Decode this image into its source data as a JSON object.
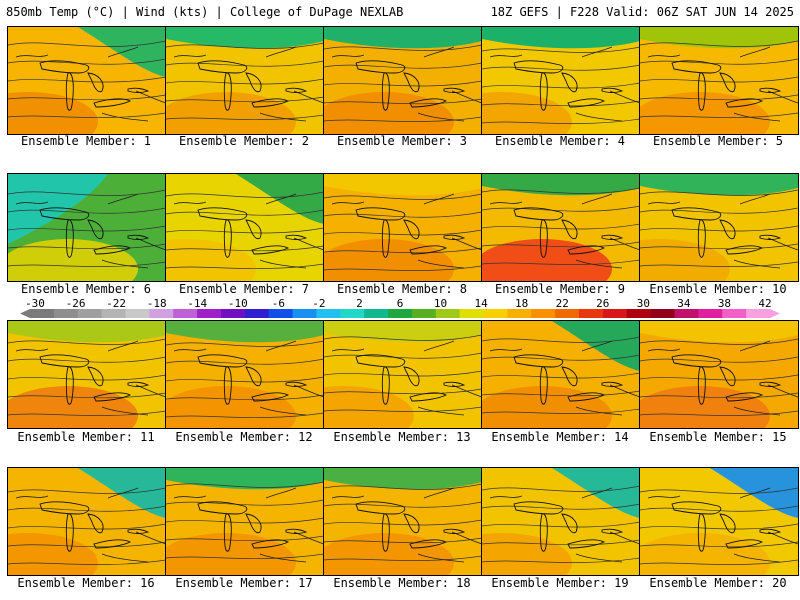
{
  "header": {
    "left": "850mb Temp (°C) | Wind (kts) | College of DuPage NEXLAB",
    "right": "18Z GEFS | F228 Valid: 06Z SAT JUN 14 2025"
  },
  "members": [
    {
      "label": "Ensemble Member: 1",
      "fill": "#f7b400",
      "warm": "#f08a00",
      "cool": "#23b463",
      "cool_corner": "ne"
    },
    {
      "label": "Ensemble Member: 2",
      "fill": "#f2c400",
      "warm": "#f29a00",
      "cool": "#1ab86c",
      "cool_corner": "n"
    },
    {
      "label": "Ensemble Member: 3",
      "fill": "#f3b000",
      "warm": "#f08a00",
      "cool": "#14b070",
      "cool_corner": "n"
    },
    {
      "label": "Ensemble Member: 4",
      "fill": "#f2c800",
      "warm": "#f5a000",
      "cool": "#0fb06f",
      "cool_corner": "n"
    },
    {
      "label": "Ensemble Member: 5",
      "fill": "#f7b800",
      "warm": "#f39000",
      "cool": "#9ac40a",
      "cool_corner": "n"
    },
    {
      "label": "Ensemble Member: 6",
      "fill": "#4cb038",
      "warm": "#e8d400",
      "cool": "#1fc7b0",
      "cool_corner": "nw"
    },
    {
      "label": "Ensemble Member: 7",
      "fill": "#e8d400",
      "warm": "#f2c000",
      "cool": "#2aa84a",
      "cool_corner": "ne"
    },
    {
      "label": "Ensemble Member: 8",
      "fill": "#f5b000",
      "warm": "#f08a00",
      "cool": "#f2c800",
      "cool_corner": "n"
    },
    {
      "label": "Ensemble Member: 9",
      "fill": "#f3ba00",
      "warm": "#ee3b1a",
      "cool": "#2aa84a",
      "cool_corner": "n"
    },
    {
      "label": "Ensemble Member: 10",
      "fill": "#f2c400",
      "warm": "#f2a800",
      "cool": "#25b25e",
      "cool_corner": "n"
    },
    {
      "label": "Ensemble Member: 11",
      "fill": "#f2c400",
      "warm": "#f07a10",
      "cool": "#a8c818",
      "cool_corner": "n"
    },
    {
      "label": "Ensemble Member: 12",
      "fill": "#f5b000",
      "warm": "#f39000",
      "cool": "#4cb040",
      "cool_corner": "n"
    },
    {
      "label": "Ensemble Member: 13",
      "fill": "#f2c400",
      "warm": "#f5a000",
      "cool": "#c8d010",
      "cool_corner": "n"
    },
    {
      "label": "Ensemble Member: 14",
      "fill": "#f5b000",
      "warm": "#f08a00",
      "cool": "#1aa860",
      "cool_corner": "ne"
    },
    {
      "label": "Ensemble Member: 15",
      "fill": "#f5a800",
      "warm": "#f07a10",
      "cool": "#f2c400",
      "cool_corner": "n"
    },
    {
      "label": "Ensemble Member: 16",
      "fill": "#f5b400",
      "warm": "#f29000",
      "cool": "#1ab8a0",
      "cool_corner": "ne"
    },
    {
      "label": "Ensemble Member: 17",
      "fill": "#f5b400",
      "warm": "#f29000",
      "cool": "#25b460",
      "cool_corner": "n"
    },
    {
      "label": "Ensemble Member: 18",
      "fill": "#f5b400",
      "warm": "#f29000",
      "cool": "#40b048",
      "cool_corner": "n"
    },
    {
      "label": "Ensemble Member: 19",
      "fill": "#f2c400",
      "warm": "#f5a000",
      "cool": "#1ab8a0",
      "cool_corner": "ne"
    },
    {
      "label": "Ensemble Member: 20",
      "fill": "#f2c800",
      "warm": "#f5b000",
      "cool": "#1a90e8",
      "cool_corner": "ne"
    }
  ],
  "colorbar": {
    "labels": [
      "-30",
      "-26",
      "-22",
      "-18",
      "-14",
      "-10",
      "-6",
      "-2",
      "2",
      "6",
      "10",
      "14",
      "18",
      "22",
      "26",
      "30",
      "34",
      "38",
      "42"
    ],
    "colors": [
      "#7a7a7a",
      "#8e8e8e",
      "#a0a0a0",
      "#b4b4b4",
      "#c8c8c8",
      "#d0a0e0",
      "#c060d8",
      "#a020c8",
      "#7010c0",
      "#3020d0",
      "#1050e8",
      "#1890f0",
      "#20c0f0",
      "#20d8c8",
      "#10b890",
      "#20a840",
      "#58b020",
      "#a0c818",
      "#e0e000",
      "#f8d000",
      "#f8b000",
      "#f89000",
      "#f06800",
      "#e83810",
      "#d81818",
      "#b00010",
      "#900018",
      "#c0106a",
      "#e020a0",
      "#f060c8",
      "#f8a0e0"
    ]
  }
}
